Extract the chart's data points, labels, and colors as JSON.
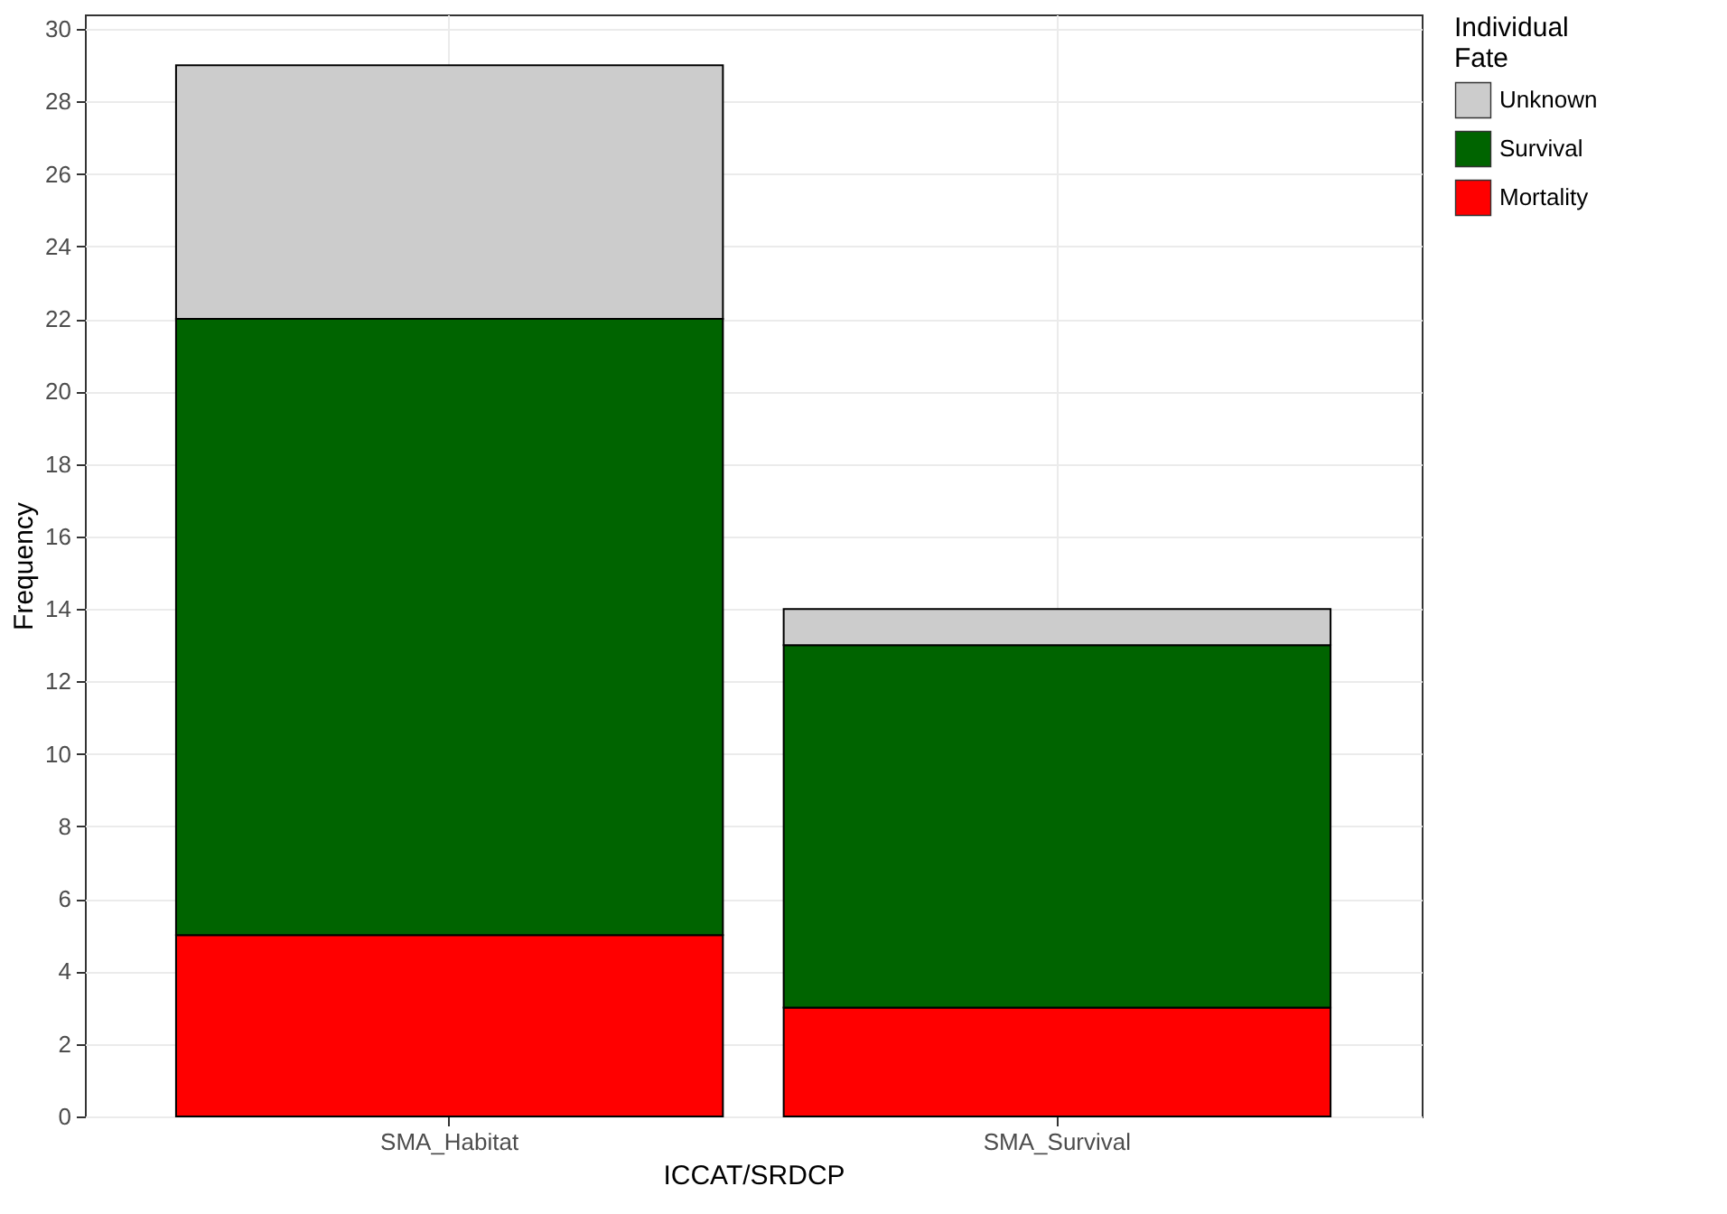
{
  "chart_data": {
    "type": "bar",
    "stacked": true,
    "xlabel": "ICCAT/SRDCP",
    "ylabel": "Frequency",
    "legend_title": "Individual\nFate",
    "categories": [
      "SMA_Habitat",
      "SMA_Survival"
    ],
    "series": [
      {
        "name": "Mortality",
        "color": "#ff0000",
        "values": [
          5,
          3
        ]
      },
      {
        "name": "Survival",
        "color": "#006400",
        "values": [
          17,
          10
        ]
      },
      {
        "name": "Unknown",
        "color": "#cccccc",
        "values": [
          7,
          1
        ]
      }
    ],
    "ylim": [
      0,
      30.4
    ],
    "yticks": [
      0,
      2,
      4,
      6,
      8,
      10,
      12,
      14,
      16,
      18,
      20,
      22,
      24,
      26,
      28,
      30
    ],
    "grid": true,
    "legend": "right"
  }
}
